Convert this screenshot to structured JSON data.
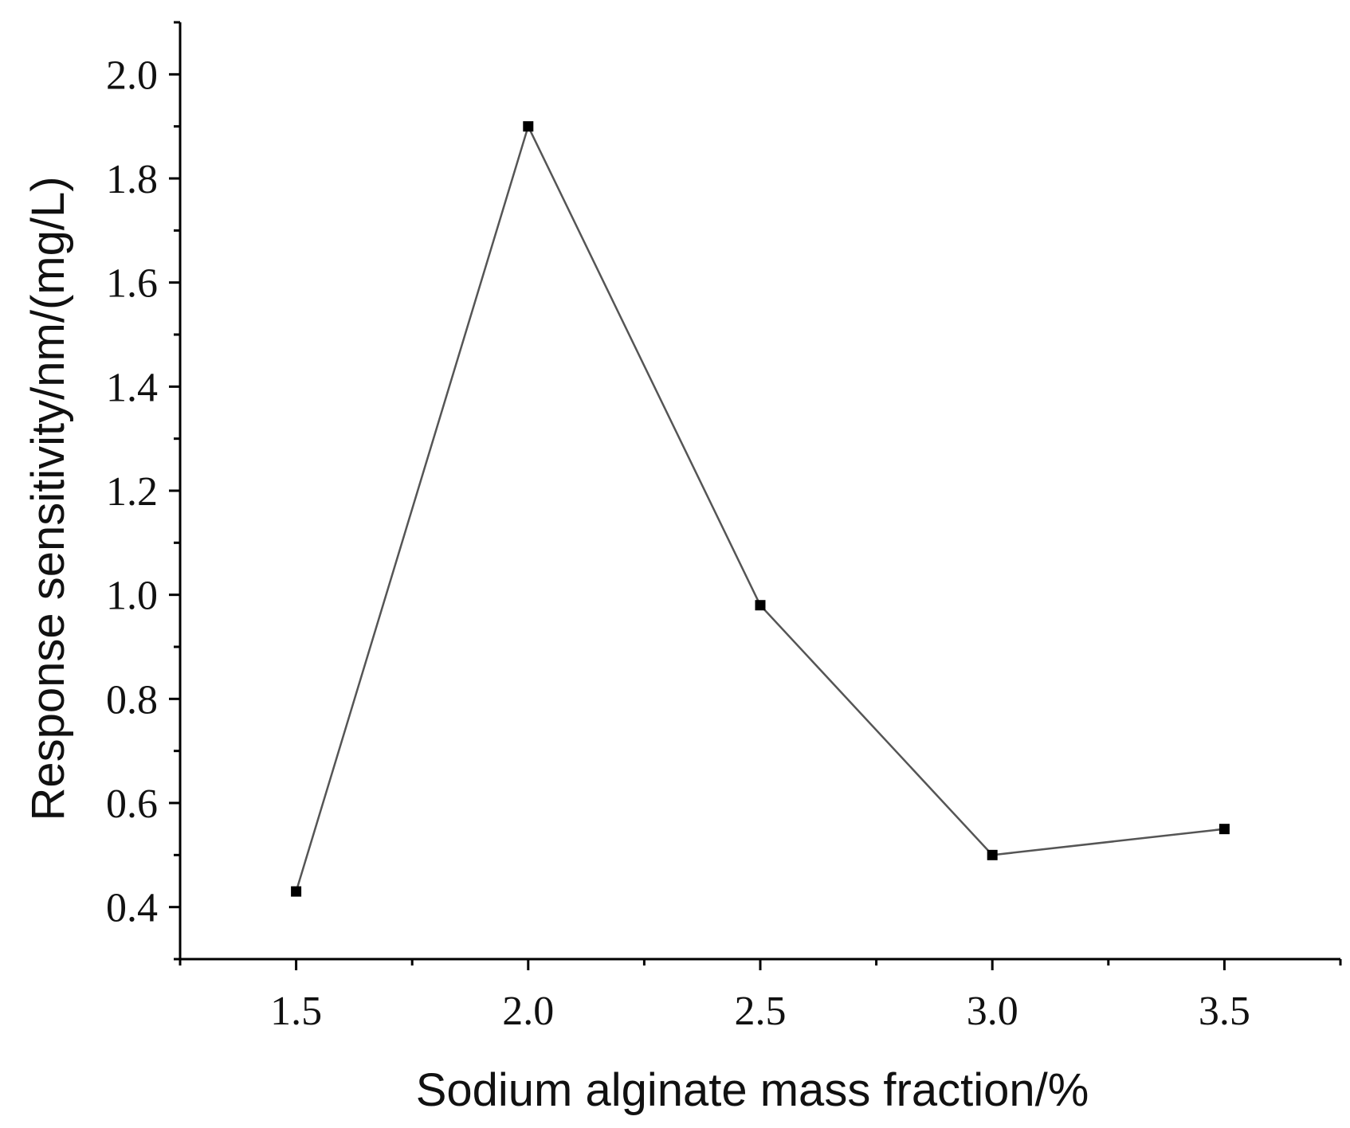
{
  "chart_data": {
    "type": "line",
    "title": "",
    "xlabel": "Sodium alginate mass fraction/%",
    "ylabel": "Response sensitivity/nm/(mg/L)",
    "xlim": [
      1.25,
      3.75
    ],
    "ylim": [
      0.3,
      2.1
    ],
    "x_ticks": [
      1.5,
      2.0,
      2.5,
      3.0,
      3.5
    ],
    "x_tick_labels": [
      "1.5",
      "2.0",
      "2.5",
      "3.0",
      "3.5"
    ],
    "y_ticks": [
      0.4,
      0.6,
      0.8,
      1.0,
      1.2,
      1.4,
      1.6,
      1.8,
      2.0
    ],
    "y_tick_labels": [
      "0.4",
      "0.6",
      "0.8",
      "1.0",
      "1.2",
      "1.4",
      "1.6",
      "1.8",
      "2.0"
    ],
    "grid": false,
    "legend": "none",
    "series": [
      {
        "x": [
          1.5,
          2.0,
          2.5,
          3.0,
          3.5
        ],
        "y": [
          0.43,
          1.9,
          0.98,
          0.5,
          0.55
        ],
        "color": "#555555",
        "marker": "square",
        "marker_color": "#000000"
      }
    ]
  }
}
